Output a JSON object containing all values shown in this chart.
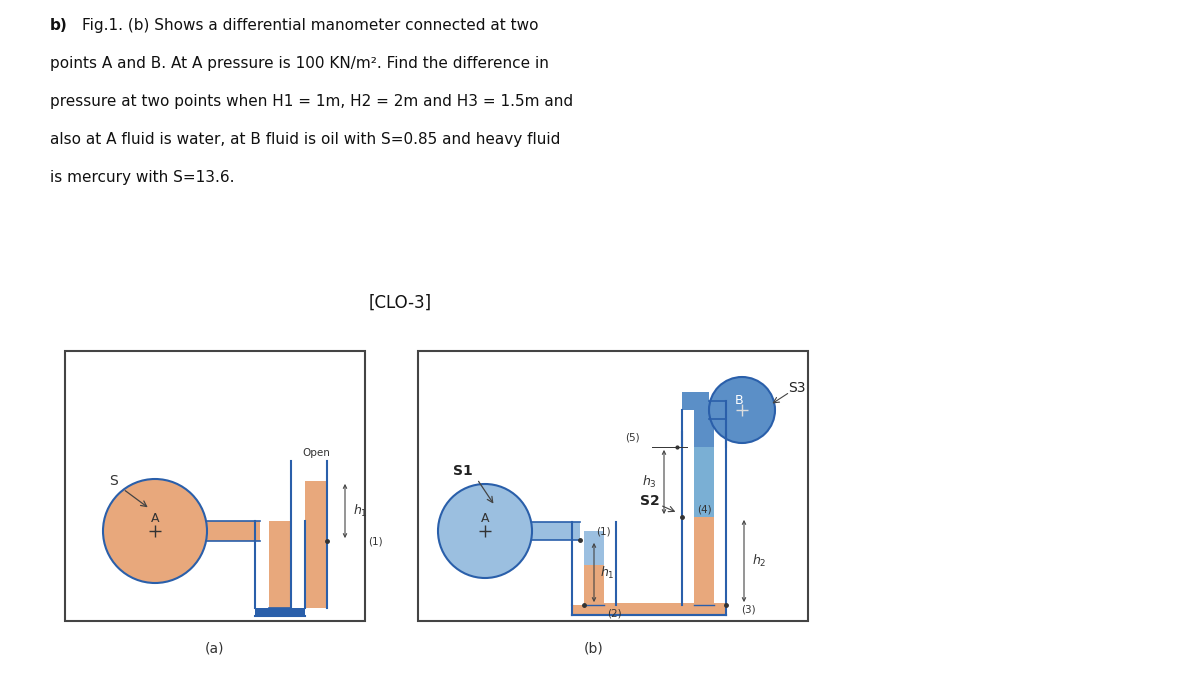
{
  "fluid_orange": "#E8A87C",
  "fluid_blue_dark": "#5B8FC7",
  "fluid_blue_light": "#9BBFE0",
  "fluid_blue_mid": "#7AAFD4",
  "pipe_outline": "#2A5FAA",
  "box_border": "#444444",
  "text_dark": "#222222",
  "text_mid": "#333333",
  "bg_white": "#FFFFFF",
  "title_line1": "b) Fig.1. (b) Shows a differential manometer connected at two",
  "title_line2": "points A and B. At A pressure is 100 KN/m². Find the difference in",
  "title_line3": "pressure at two points when H1 = 1m, H2 = 2m and H3 = 1.5m and",
  "title_line4": "also at A fluid is water, at B fluid is oil with S=0.85 and heavy fluid",
  "title_line5": "is mercury with S=13.6.",
  "clo_text": "[CLO-3]",
  "fig_width": 12.0,
  "fig_height": 6.73,
  "dpi": 100
}
